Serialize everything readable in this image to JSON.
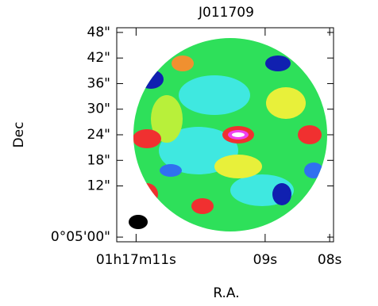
{
  "chart_data": {
    "type": "image",
    "title": "J011709",
    "x_label": "R.A.",
    "y_label": "Dec",
    "xlim": [
      11.3,
      7.94
    ],
    "ylim": [
      -1.1,
      49.1
    ],
    "xticks": [
      {
        "value": 11,
        "label": "01h17m11s"
      },
      {
        "value": 9,
        "label": "09s"
      },
      {
        "value": 8,
        "label": "08s"
      }
    ],
    "yticks": [
      {
        "value": 0,
        "label": "0°05'00\""
      },
      {
        "value": 12,
        "label": "12\""
      },
      {
        "value": 18,
        "label": "18\""
      },
      {
        "value": 24,
        "label": "24\""
      },
      {
        "value": 30,
        "label": "30\""
      },
      {
        "value": 36,
        "label": "36\""
      },
      {
        "value": 42,
        "label": "42\""
      },
      {
        "value": 48,
        "label": "48\""
      }
    ]
  }
}
